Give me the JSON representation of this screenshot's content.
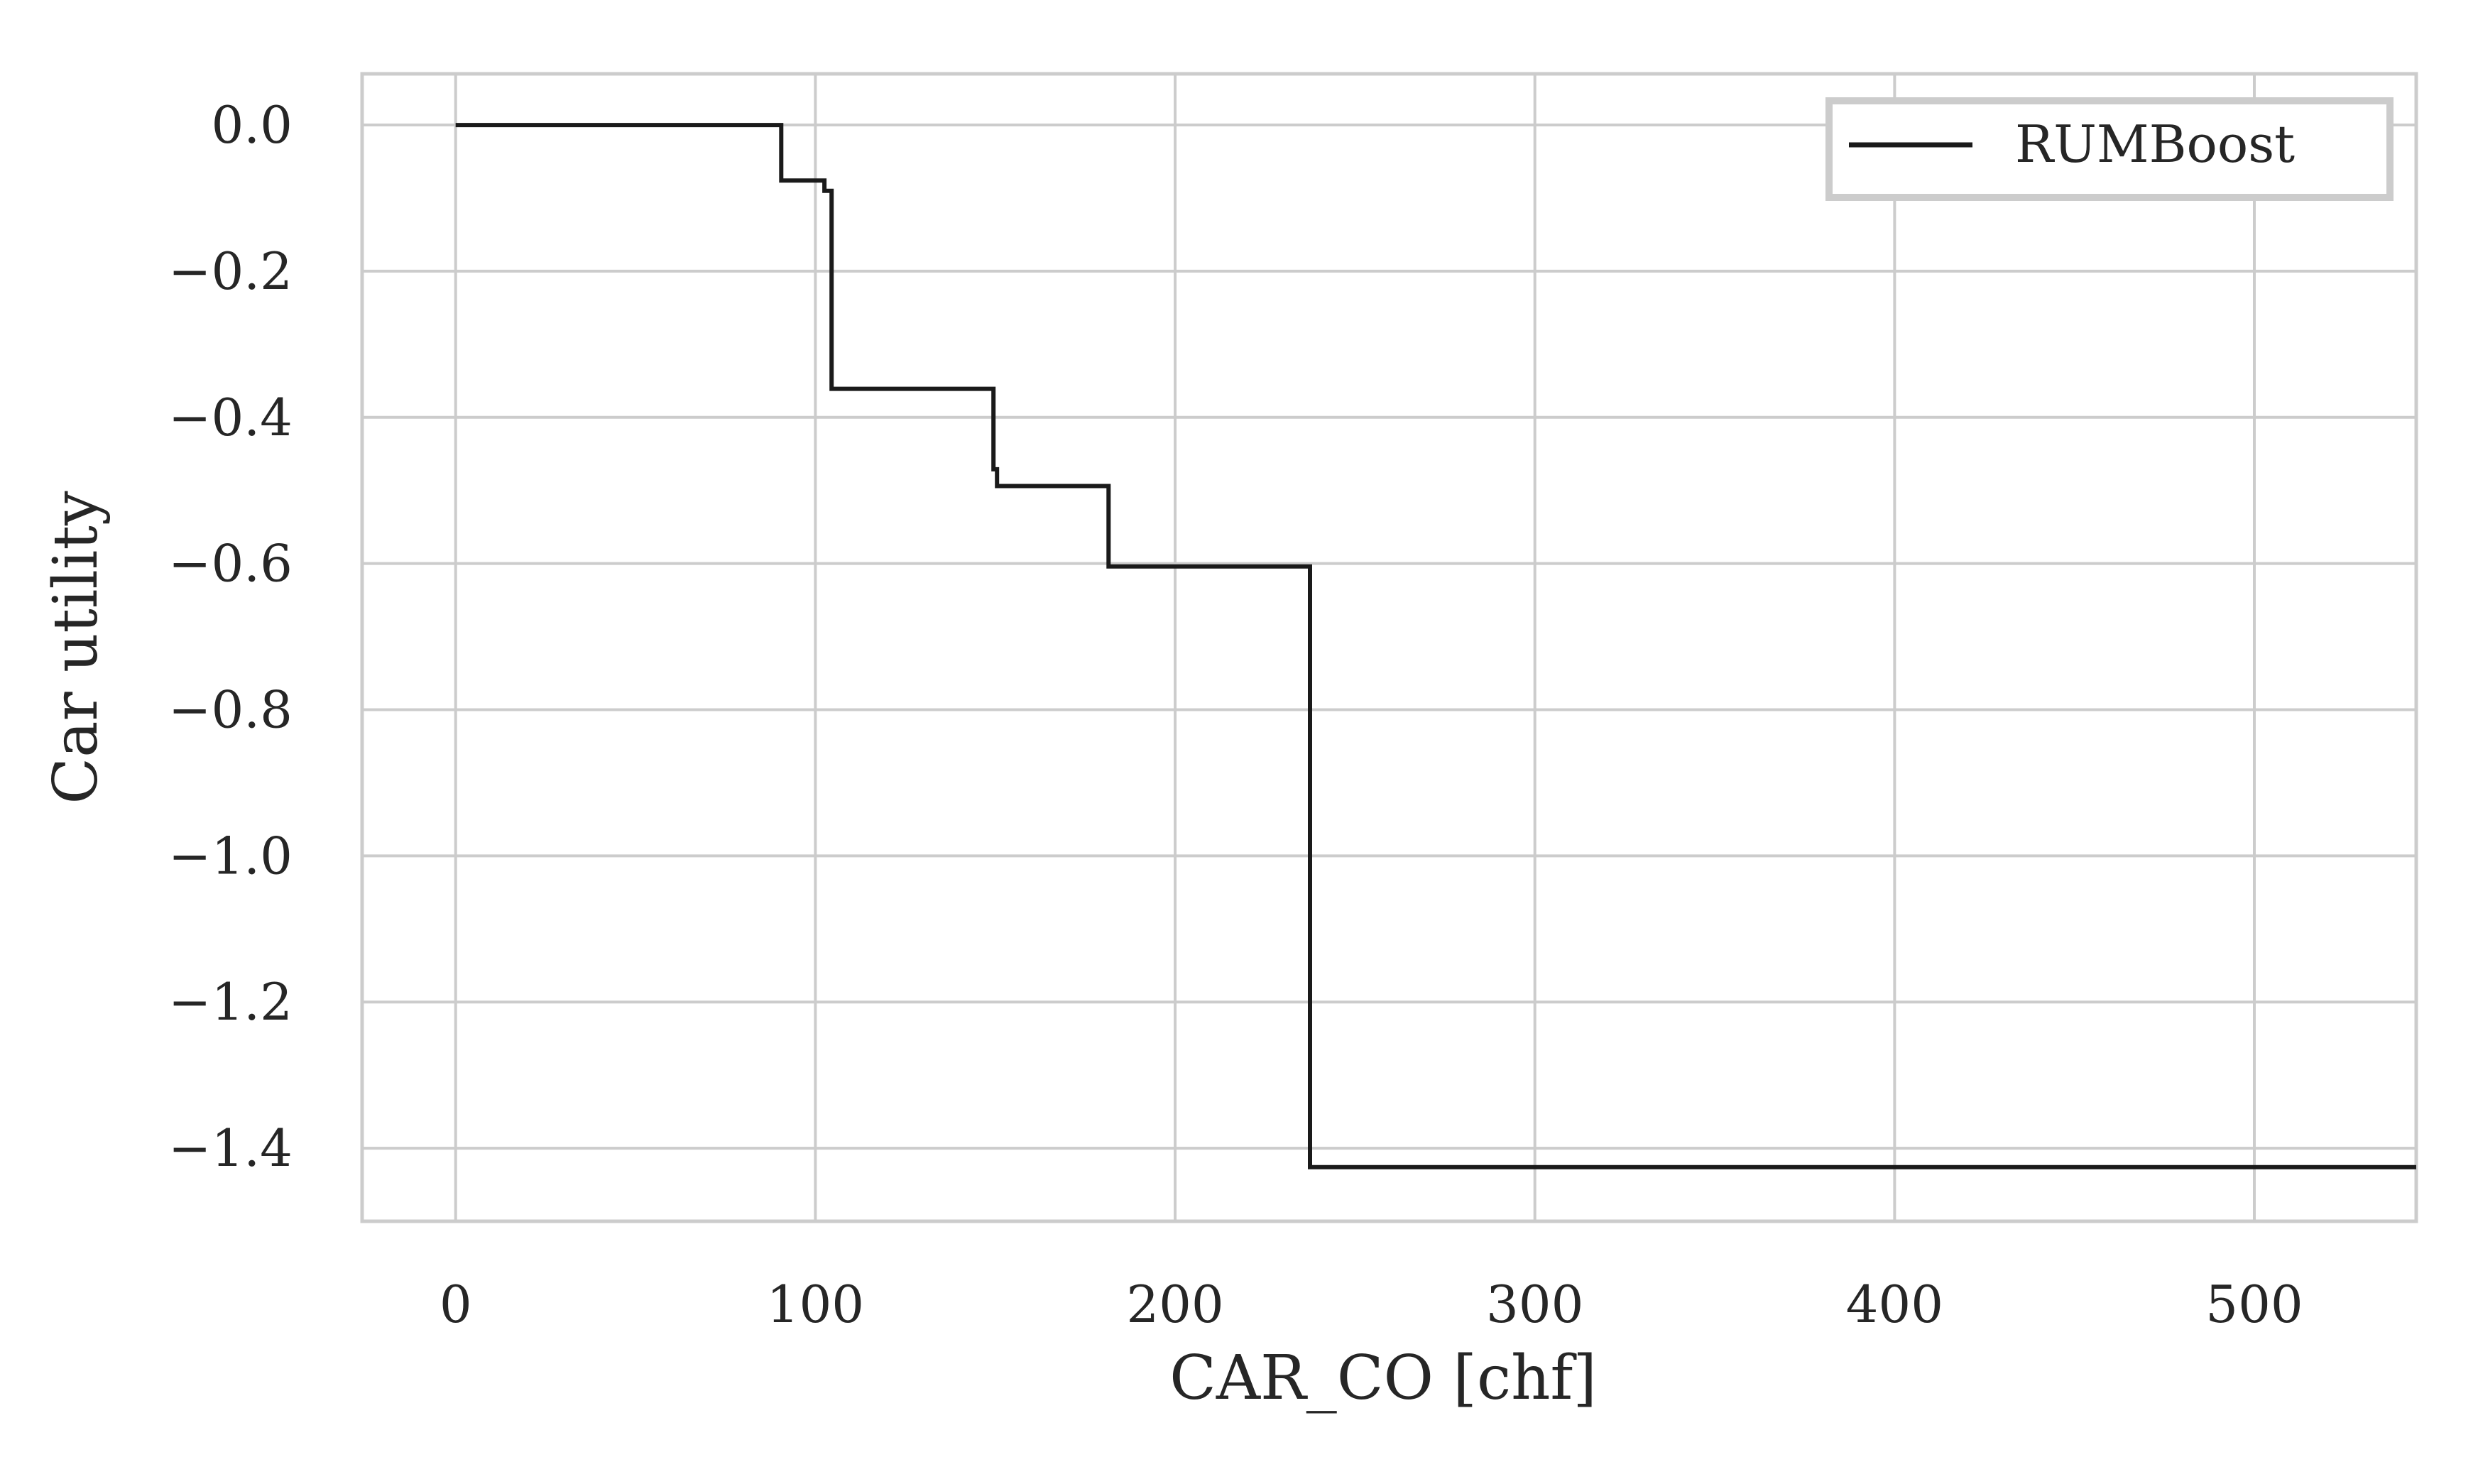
{
  "chart_data": {
    "type": "line",
    "step": true,
    "xlabel": "CAR_CO [chf]",
    "ylabel": "Car utility",
    "xlim": [
      -26,
      545
    ],
    "ylim": [
      -1.5,
      0.07
    ],
    "x_ticks": [
      0,
      100,
      200,
      300,
      400,
      500
    ],
    "y_ticks": [
      0.0,
      -0.2,
      -0.4,
      -0.6,
      -0.8,
      -1.0,
      -1.2,
      -1.4
    ],
    "x_tick_labels": [
      "0",
      "100",
      "200",
      "300",
      "400",
      "500"
    ],
    "y_tick_labels": [
      "0.0",
      "−0.2",
      "−0.4",
      "−0.6",
      "−0.8",
      "−1.0",
      "−1.2",
      "−1.4"
    ],
    "grid": true,
    "legend_position": "top-right",
    "series": [
      {
        "name": "RUMBoost",
        "color": "#1a1a1a",
        "x": [
          0,
          90.5,
          90.5,
          102.5,
          102.5,
          104.5,
          104.5,
          149.5,
          149.5,
          150.5,
          150.5,
          181.5,
          181.5,
          237.5,
          237.5,
          545
        ],
        "y": [
          0.0,
          0.0,
          -0.076,
          -0.076,
          -0.09,
          -0.09,
          -0.361,
          -0.361,
          -0.471,
          -0.471,
          -0.494,
          -0.494,
          -0.604,
          -0.604,
          -1.426,
          -1.426
        ]
      }
    ]
  }
}
